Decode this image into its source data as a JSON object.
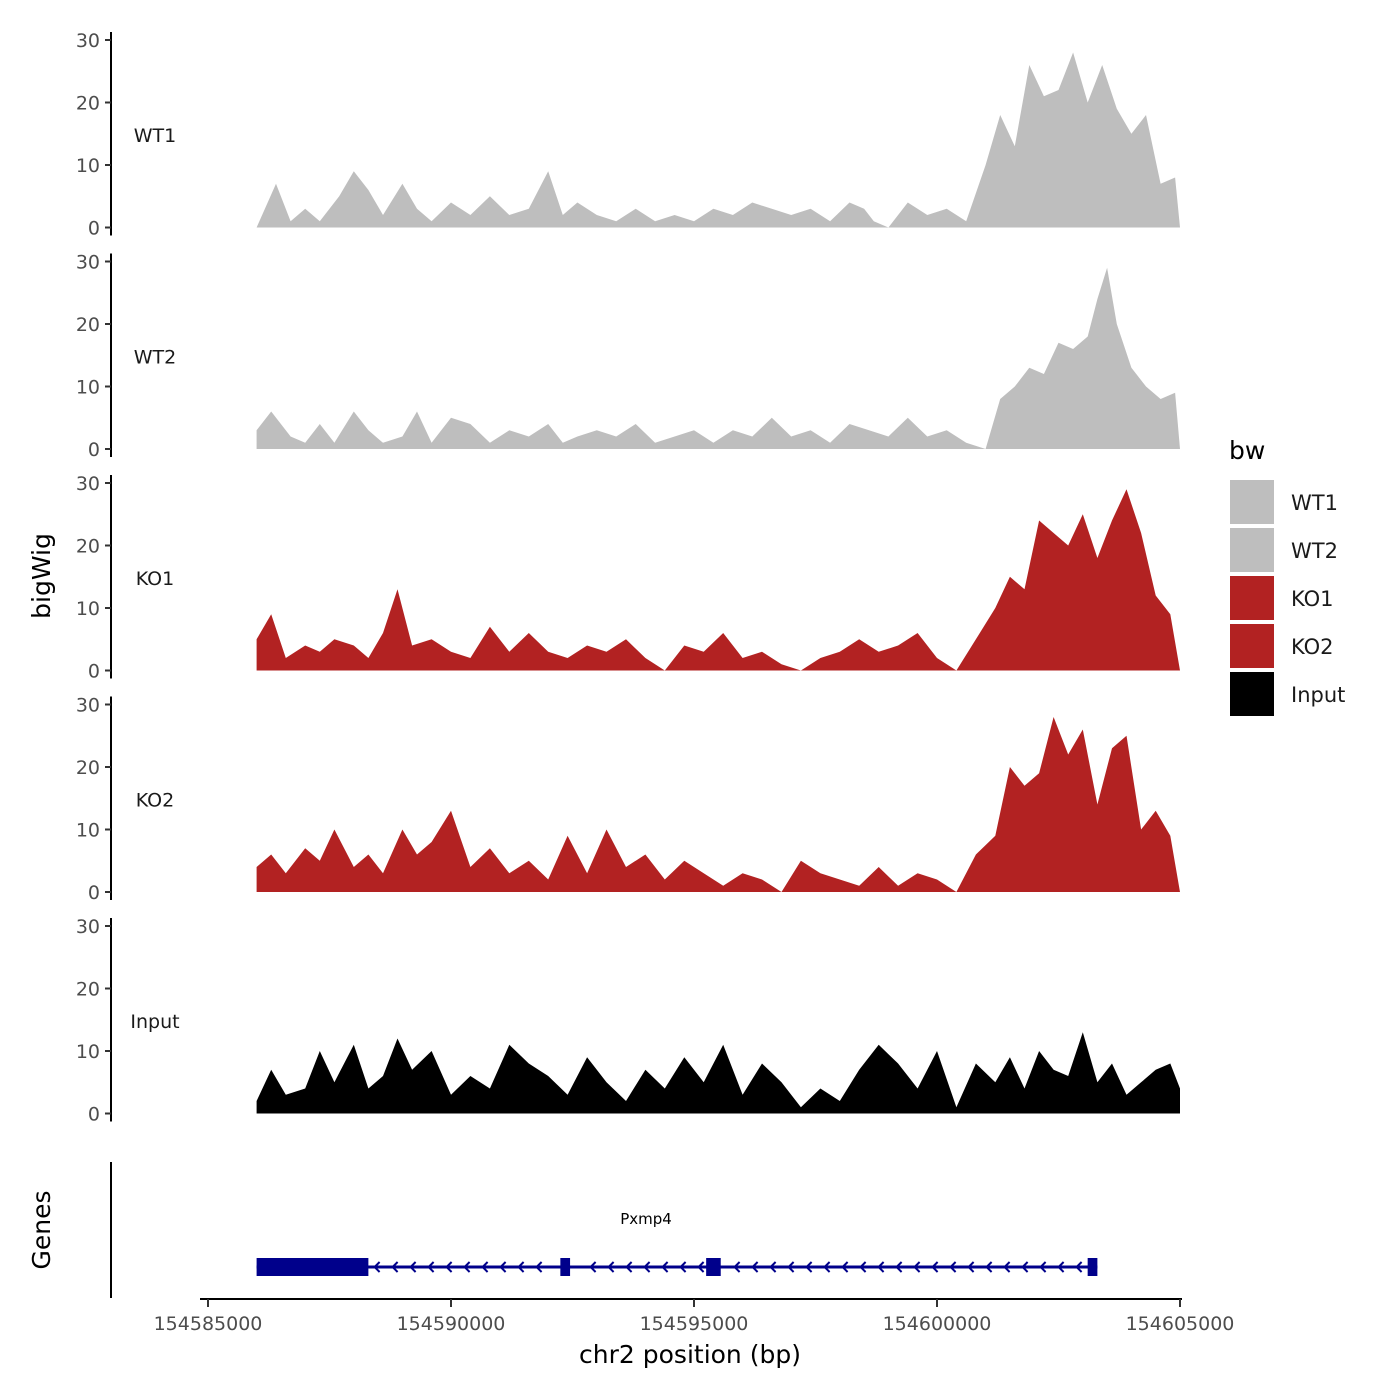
{
  "chart_data": {
    "type": "area",
    "title": "",
    "ylabel": "bigWig",
    "genes_label": "Genes",
    "xlabel": "chr2 position (bp)",
    "xlim": [
      154585000,
      154605000
    ],
    "ylim": [
      0,
      30
    ],
    "x_ticks": [
      154585000,
      154590000,
      154595000,
      154600000,
      154605000
    ],
    "x_tick_labels": [
      "154585000",
      "154590000",
      "154595000",
      "154600000",
      "154605000"
    ],
    "y_ticks": [
      0,
      10,
      20,
      30
    ],
    "y_tick_labels": [
      "0",
      "10",
      "20",
      "30"
    ],
    "legend": {
      "title": "bw",
      "position": "right",
      "entries": [
        {
          "label": "WT1",
          "color": "#bebebe"
        },
        {
          "label": "WT2",
          "color": "#bebebe"
        },
        {
          "label": "KO1",
          "color": "#b22222"
        },
        {
          "label": "KO2",
          "color": "#b22222"
        },
        {
          "label": "Input",
          "color": "#000000"
        }
      ]
    },
    "series": [
      {
        "name": "WT1",
        "color": "#bebebe",
        "x": [
          154586000,
          154586400,
          154586700,
          154587000,
          154587300,
          154587700,
          154588000,
          154588300,
          154588600,
          154589000,
          154589300,
          154589600,
          154590000,
          154590400,
          154590800,
          154591200,
          154591600,
          154592000,
          154592300,
          154592600,
          154593000,
          154593400,
          154593800,
          154594200,
          154594600,
          154595000,
          154595400,
          154595800,
          154596200,
          154596600,
          154597000,
          154597400,
          154597800,
          154598200,
          154598500,
          154598700,
          154599000,
          154599400,
          154599800,
          154600200,
          154600600,
          154601000,
          154601300,
          154601600,
          154601900,
          154602200,
          154602500,
          154602800,
          154603100,
          154603400,
          154603700,
          154604000,
          154604300,
          154604600,
          154604900,
          154605000
        ],
        "values": [
          0,
          7,
          1,
          3,
          1,
          5,
          9,
          6,
          2,
          7,
          3,
          1,
          4,
          2,
          5,
          2,
          3,
          9,
          2,
          4,
          2,
          1,
          3,
          1,
          2,
          1,
          3,
          2,
          4,
          3,
          2,
          3,
          1,
          4,
          3,
          1,
          0,
          4,
          2,
          3,
          1,
          10,
          18,
          13,
          26,
          21,
          22,
          28,
          20,
          26,
          19,
          15,
          18,
          7,
          8,
          0
        ]
      },
      {
        "name": "WT2",
        "color": "#bebebe",
        "x": [
          154586000,
          154586300,
          154586700,
          154587000,
          154587300,
          154587600,
          154588000,
          154588300,
          154588600,
          154589000,
          154589300,
          154589600,
          154590000,
          154590400,
          154590800,
          154591200,
          154591600,
          154592000,
          154592300,
          154592600,
          154593000,
          154593400,
          154593800,
          154594200,
          154594600,
          154595000,
          154595400,
          154595800,
          154596200,
          154596600,
          154597000,
          154597400,
          154597800,
          154598200,
          154598600,
          154599000,
          154599400,
          154599800,
          154600200,
          154600600,
          154601000,
          154601300,
          154601600,
          154601900,
          154602200,
          154602500,
          154602800,
          154603100,
          154603300,
          154603500,
          154603700,
          154604000,
          154604300,
          154604600,
          154604900,
          154605000
        ],
        "values": [
          3,
          6,
          2,
          1,
          4,
          1,
          6,
          3,
          1,
          2,
          6,
          1,
          5,
          4,
          1,
          3,
          2,
          4,
          1,
          2,
          3,
          2,
          4,
          1,
          2,
          3,
          1,
          3,
          2,
          5,
          2,
          3,
          1,
          4,
          3,
          2,
          5,
          2,
          3,
          1,
          0,
          8,
          10,
          13,
          12,
          17,
          16,
          18,
          24,
          29,
          20,
          13,
          10,
          8,
          9,
          0
        ]
      },
      {
        "name": "KO1",
        "color": "#b22222",
        "x": [
          154586000,
          154586300,
          154586600,
          154587000,
          154587300,
          154587600,
          154588000,
          154588300,
          154588600,
          154588900,
          154589200,
          154589600,
          154590000,
          154590400,
          154590800,
          154591200,
          154591600,
          154592000,
          154592400,
          154592800,
          154593200,
          154593600,
          154594000,
          154594400,
          154594800,
          154595200,
          154595600,
          154596000,
          154596400,
          154596800,
          154597200,
          154597600,
          154598000,
          154598400,
          154598800,
          154599200,
          154599600,
          154600000,
          154600400,
          154600800,
          154601200,
          154601500,
          154601800,
          154602100,
          154602400,
          154602700,
          154603000,
          154603300,
          154603600,
          154603900,
          154604200,
          154604500,
          154604800,
          154605000
        ],
        "values": [
          5,
          9,
          2,
          4,
          3,
          5,
          4,
          2,
          6,
          13,
          4,
          5,
          3,
          2,
          7,
          3,
          6,
          3,
          2,
          4,
          3,
          5,
          2,
          0,
          4,
          3,
          6,
          2,
          3,
          1,
          0,
          2,
          3,
          5,
          3,
          4,
          6,
          2,
          0,
          5,
          10,
          15,
          13,
          24,
          22,
          20,
          25,
          18,
          24,
          29,
          22,
          12,
          9,
          0
        ]
      },
      {
        "name": "KO2",
        "color": "#b22222",
        "x": [
          154586000,
          154586300,
          154586600,
          154587000,
          154587300,
          154587600,
          154588000,
          154588300,
          154588600,
          154589000,
          154589300,
          154589600,
          154590000,
          154590400,
          154590800,
          154591200,
          154591600,
          154592000,
          154592400,
          154592800,
          154593200,
          154593600,
          154594000,
          154594400,
          154594800,
          154595200,
          154595600,
          154596000,
          154596400,
          154596800,
          154597200,
          154597600,
          154598000,
          154598400,
          154598800,
          154599200,
          154599600,
          154600000,
          154600400,
          154600800,
          154601200,
          154601500,
          154601800,
          154602100,
          154602400,
          154602700,
          154603000,
          154603300,
          154603600,
          154603900,
          154604200,
          154604500,
          154604800,
          154605000
        ],
        "values": [
          4,
          6,
          3,
          7,
          5,
          10,
          4,
          6,
          3,
          10,
          6,
          8,
          13,
          4,
          7,
          3,
          5,
          2,
          9,
          3,
          10,
          4,
          6,
          2,
          5,
          3,
          1,
          3,
          2,
          0,
          5,
          3,
          2,
          1,
          4,
          1,
          3,
          2,
          0,
          6,
          9,
          20,
          17,
          19,
          28,
          22,
          26,
          14,
          23,
          25,
          10,
          13,
          9,
          0
        ]
      },
      {
        "name": "Input",
        "color": "#000000",
        "x": [
          154586000,
          154586300,
          154586600,
          154587000,
          154587300,
          154587600,
          154588000,
          154588300,
          154588600,
          154588900,
          154589200,
          154589600,
          154590000,
          154590400,
          154590800,
          154591200,
          154591600,
          154592000,
          154592400,
          154592800,
          154593200,
          154593600,
          154594000,
          154594400,
          154594800,
          154595200,
          154595600,
          154596000,
          154596400,
          154596800,
          154597200,
          154597600,
          154598000,
          154598400,
          154598800,
          154599200,
          154599600,
          154600000,
          154600400,
          154600800,
          154601200,
          154601500,
          154601800,
          154602100,
          154602400,
          154602700,
          154603000,
          154603300,
          154603600,
          154603900,
          154604200,
          154604500,
          154604800,
          154605000
        ],
        "values": [
          2,
          7,
          3,
          4,
          10,
          5,
          11,
          4,
          6,
          12,
          7,
          10,
          3,
          6,
          4,
          11,
          8,
          6,
          3,
          9,
          5,
          2,
          7,
          4,
          9,
          5,
          11,
          3,
          8,
          5,
          1,
          4,
          2,
          7,
          11,
          8,
          4,
          10,
          1,
          8,
          5,
          9,
          4,
          10,
          7,
          6,
          13,
          5,
          8,
          3,
          5,
          7,
          8,
          4
        ]
      }
    ],
    "gene_track": {
      "gene_name": "Pxmp4",
      "strand": "-",
      "span": [
        154586000,
        154603300
      ],
      "exons": [
        {
          "start": 154586000,
          "end": 154588300
        },
        {
          "start": 154592250,
          "end": 154592450
        },
        {
          "start": 154595250,
          "end": 154595550
        },
        {
          "start": 154603100,
          "end": 154603300
        }
      ],
      "color": "#00008b"
    }
  }
}
